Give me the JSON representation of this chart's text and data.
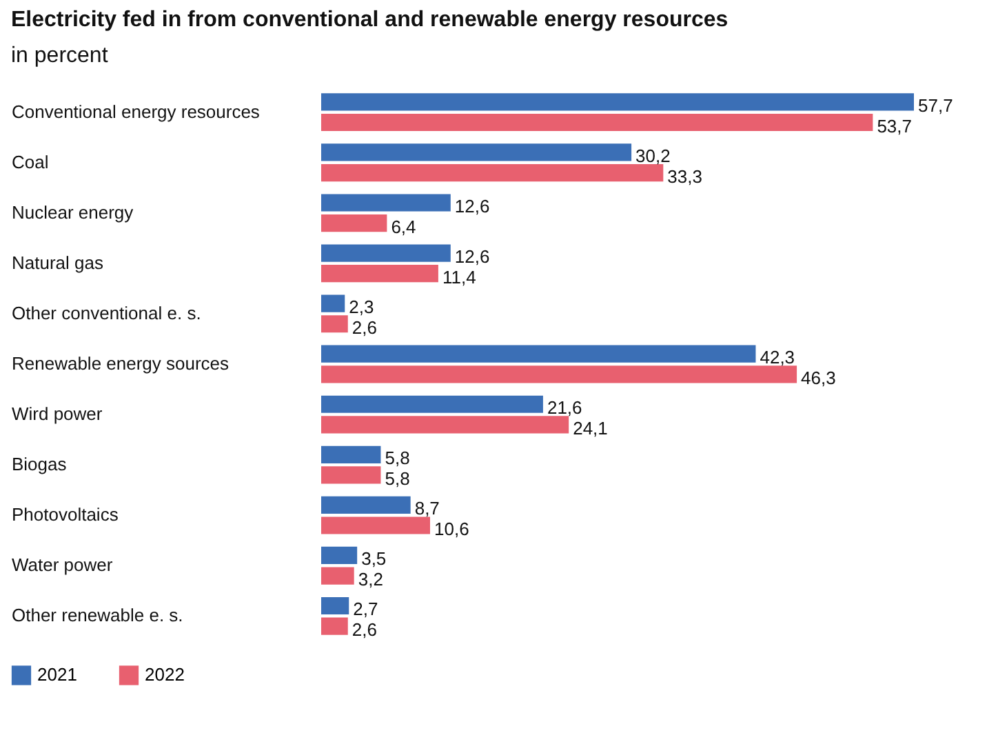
{
  "chart_data": {
    "type": "bar",
    "orientation": "horizontal",
    "title": "Electricity fed in from conventional and renewable energy resources",
    "subtitle": "in percent",
    "categories": [
      "Conventional energy resources",
      "Coal",
      "Nuclear energy",
      "Natural gas",
      "Other conventional e. s.",
      "Renewable energy sources",
      "Wird power",
      "Biogas",
      "Photovoltaics",
      "Water power",
      "Other renewable e. s."
    ],
    "series": [
      {
        "name": "2021",
        "color": "#3b6fb6",
        "values": [
          57.7,
          30.2,
          12.6,
          12.6,
          2.3,
          42.3,
          21.6,
          5.8,
          8.7,
          3.5,
          2.7
        ],
        "value_labels": [
          "57,7",
          "30,2",
          "12,6",
          "12,6",
          "2,3",
          "42,3",
          "21,6",
          "5,8",
          "8,7",
          "3,5",
          "2,7"
        ]
      },
      {
        "name": "2022",
        "color": "#e8606f",
        "values": [
          53.7,
          33.3,
          6.4,
          11.4,
          2.6,
          46.3,
          24.1,
          5.8,
          10.6,
          3.2,
          2.6
        ],
        "value_labels": [
          "53,7",
          "33,3",
          "6,4",
          "11,4",
          "2,6",
          "46,3",
          "24,1",
          "5,8",
          "10,6",
          "3,2",
          "2,6"
        ]
      }
    ],
    "legend": "bottom left"
  }
}
